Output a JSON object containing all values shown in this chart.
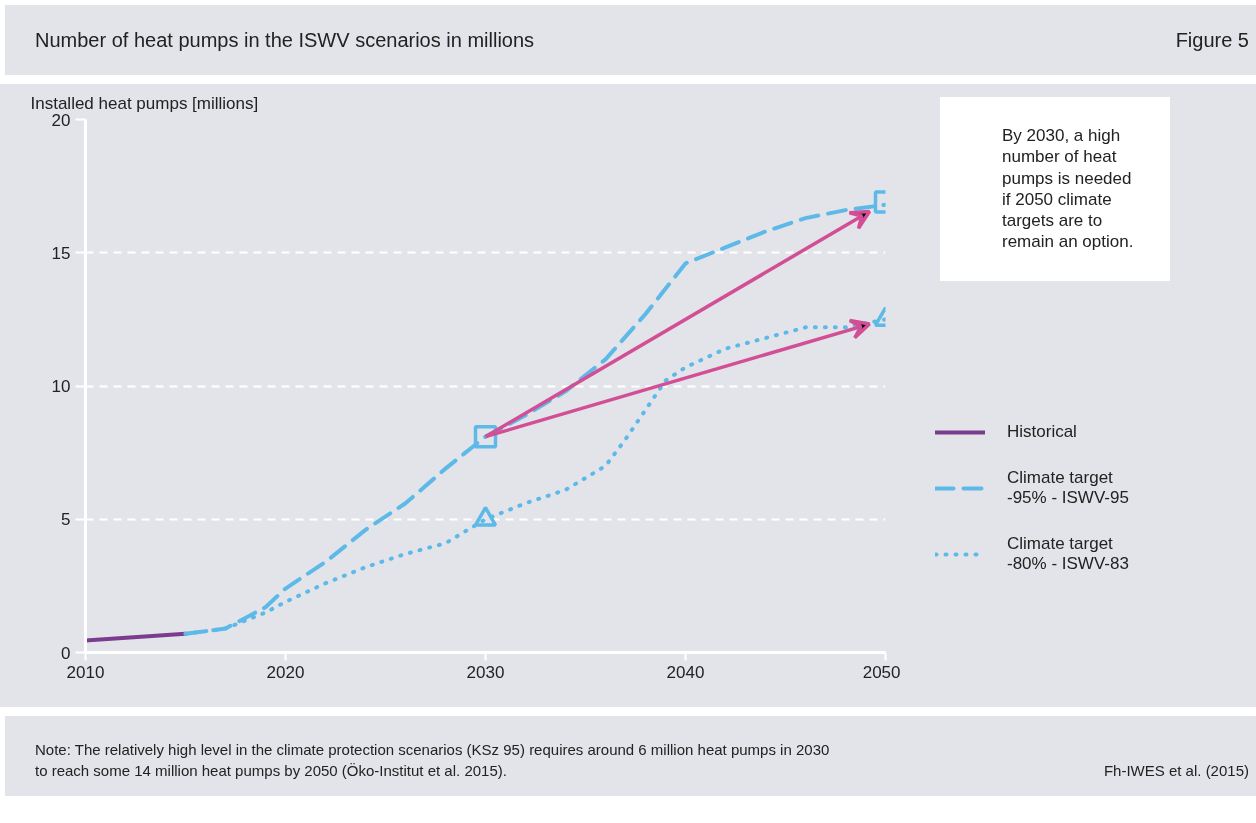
{
  "chart_data": {
    "type": "line",
    "title": "Number of heat pumps in the ISWV scenarios in millions",
    "ylabel": "Installed heat pumps [millions]",
    "xlim": [
      2010,
      2050
    ],
    "xticks": [
      2010,
      2020,
      2030,
      2040,
      2050
    ],
    "ylim": [
      0,
      20
    ],
    "yticks": [
      0,
      5,
      10,
      15,
      20
    ],
    "grid": "y",
    "legend": "right",
    "series": [
      {
        "name": "Historical",
        "color": "#7b3b8e",
        "line_style": "solid",
        "x": [
          2010,
          2015
        ],
        "values": [
          0.45,
          0.7
        ]
      },
      {
        "name": "Climate target -95% - ISWV-95",
        "color": "#5db9e8",
        "line_style": "dashed",
        "x": [
          2015,
          2017,
          2019,
          2020,
          2022,
          2024,
          2026,
          2028,
          2030,
          2032,
          2034,
          2036,
          2038,
          2040,
          2042,
          2044,
          2046,
          2048,
          2050
        ],
        "values": [
          0.7,
          0.9,
          1.7,
          2.4,
          3.4,
          4.6,
          5.6,
          6.9,
          8.1,
          8.9,
          9.8,
          11.0,
          12.7,
          14.6,
          15.2,
          15.8,
          16.3,
          16.6,
          16.8
        ]
      },
      {
        "name": "Climate target -80% - ISWV-83",
        "color": "#5db9e8",
        "line_style": "dotted",
        "x": [
          2015,
          2017,
          2019,
          2020,
          2022,
          2024,
          2026,
          2028,
          2030,
          2032,
          2034,
          2036,
          2037,
          2038,
          2039,
          2040,
          2042,
          2044,
          2046,
          2048,
          2050
        ],
        "values": [
          0.7,
          0.9,
          1.5,
          1.9,
          2.6,
          3.2,
          3.7,
          4.1,
          5.0,
          5.6,
          6.1,
          7.0,
          8.0,
          9.1,
          10.2,
          10.7,
          11.4,
          11.8,
          12.2,
          12.2,
          12.5
        ]
      },
      {
        "type": "scatter",
        "marker": "square",
        "color": "#5db9e8",
        "x": [
          2030,
          2050
        ],
        "values": [
          8.1,
          16.9
        ]
      },
      {
        "type": "scatter",
        "marker": "triangle",
        "color": "#5db9e8",
        "x": [
          2030,
          2050
        ],
        "values": [
          5.0,
          12.5
        ]
      }
    ],
    "annotations": [
      "Figure 5",
      "By 2030, a high number of heat pumps is needed if 2050 climate targets are to remain an option.",
      "Note: The relatively high level in the climate protection scenarios (KSz 95) requires around 6 million heat pumps in 2030 to reach some 14 million heat pumps by 2050 (Öko-Institut et al. 2015).",
      "Fh-IWES et al. (2015)"
    ]
  }
}
